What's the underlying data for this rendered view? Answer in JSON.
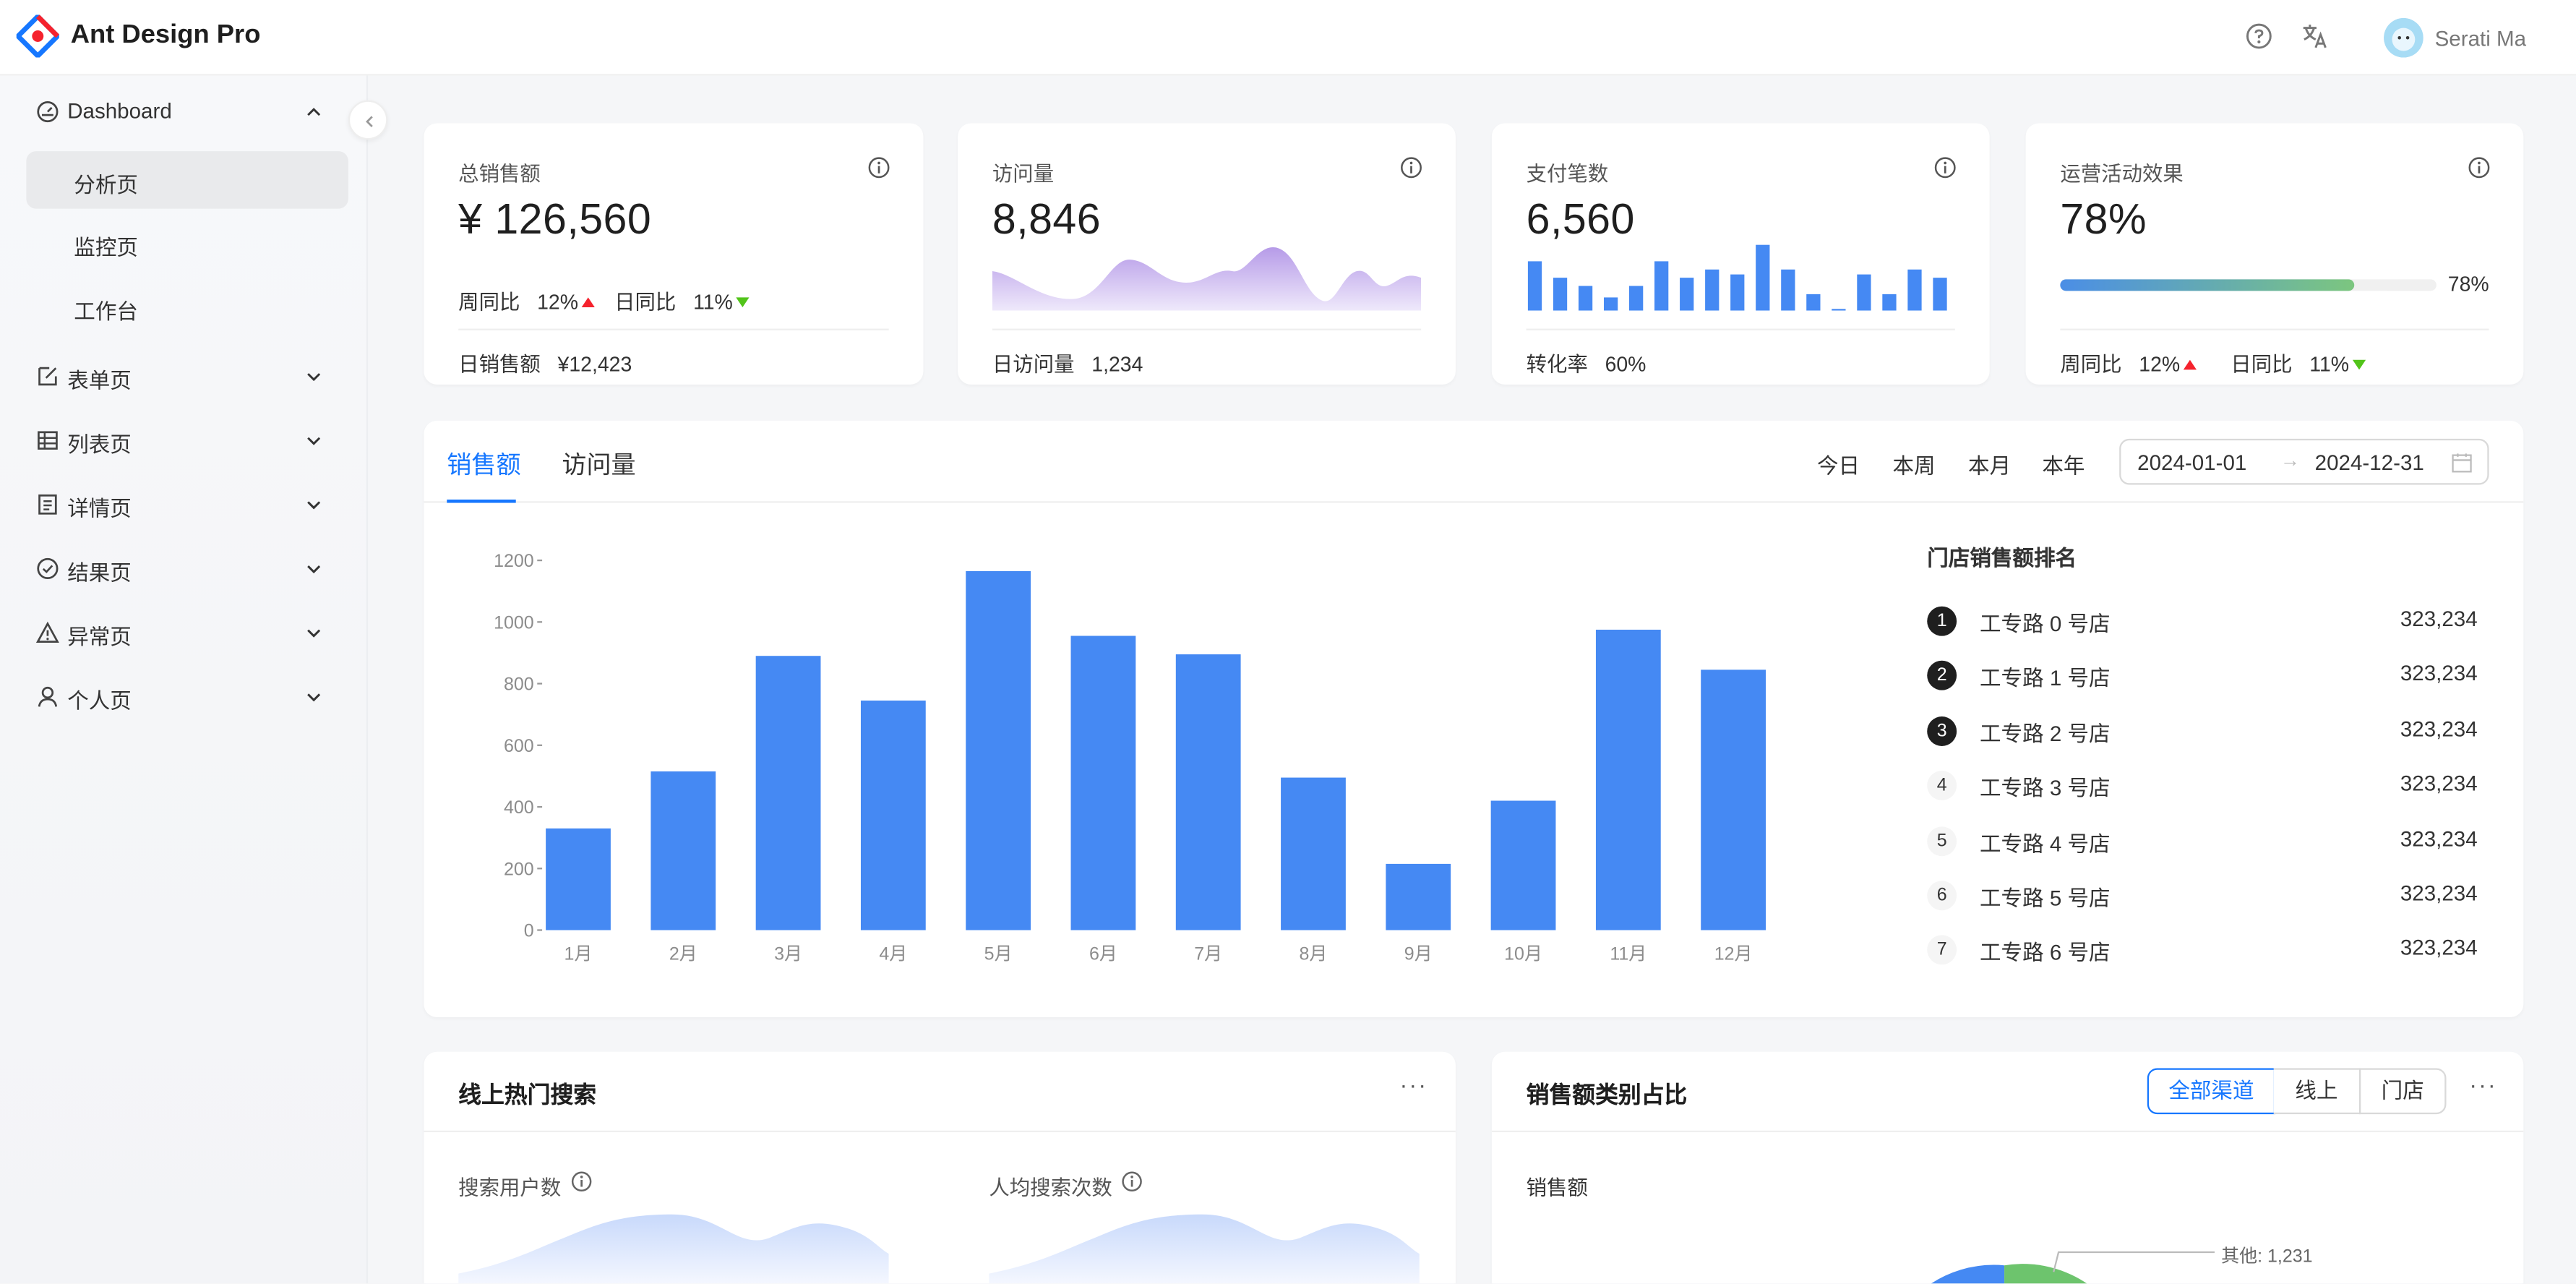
{
  "header": {
    "app_title": "Ant Design Pro",
    "user_name": "Serati Ma"
  },
  "sidebar": {
    "dashboard": {
      "label": "Dashboard",
      "children": [
        "分析页",
        "监控页",
        "工作台"
      ],
      "active_child": "分析页"
    },
    "items": [
      "表单页",
      "列表页",
      "详情页",
      "结果页",
      "异常页",
      "个人页"
    ]
  },
  "stats": [
    {
      "title": "总销售额",
      "value": "¥ 126,560",
      "trend_week_label": "周同比",
      "trend_week": "12%",
      "trend_day_label": "日同比",
      "trend_day": "11%",
      "footer_label": "日销售额",
      "footer_value": "¥12,423"
    },
    {
      "title": "访问量",
      "value": "8,846",
      "footer_label": "日访问量",
      "footer_value": "1,234"
    },
    {
      "title": "支付笔数",
      "value": "6,560",
      "footer_label": "转化率",
      "footer_value": "60%",
      "bar_values": [
        30,
        20,
        15,
        8,
        15,
        30,
        20,
        25,
        22,
        40,
        25,
        10,
        0,
        22,
        10,
        25,
        20
      ]
    },
    {
      "title": "运营活动效果",
      "value": "78%",
      "progress": 0.78,
      "progress_label": "78%",
      "trend_week_label": "周同比",
      "trend_week": "12%",
      "trend_day_label": "日同比",
      "trend_day": "11%"
    }
  ],
  "sales": {
    "tabs": [
      "销售额",
      "访问量"
    ],
    "active_tab": "销售额",
    "ranges": [
      "今日",
      "本周",
      "本月",
      "本年"
    ],
    "date_start": "2024-01-01",
    "date_end": "2024-12-31",
    "rank_title": "门店销售额排名",
    "ranking": [
      {
        "rank": "1",
        "name": "工专路 0 号店",
        "value": "323,234"
      },
      {
        "rank": "2",
        "name": "工专路 1 号店",
        "value": "323,234"
      },
      {
        "rank": "3",
        "name": "工专路 2 号店",
        "value": "323,234"
      },
      {
        "rank": "4",
        "name": "工专路 3 号店",
        "value": "323,234"
      },
      {
        "rank": "5",
        "name": "工专路 4 号店",
        "value": "323,234"
      },
      {
        "rank": "6",
        "name": "工专路 5 号店",
        "value": "323,234"
      },
      {
        "rank": "7",
        "name": "工专路 6 号店",
        "value": "323,234"
      }
    ]
  },
  "chart_data": {
    "type": "bar",
    "categories": [
      "1月",
      "2月",
      "3月",
      "4月",
      "5月",
      "6月",
      "7月",
      "8月",
      "9月",
      "10月",
      "11月",
      "12月"
    ],
    "values": [
      330,
      515,
      890,
      745,
      1165,
      955,
      895,
      495,
      215,
      420,
      975,
      845
    ],
    "ylim": [
      0,
      1200
    ],
    "yticks": [
      0,
      200,
      400,
      600,
      800,
      1000,
      1200
    ],
    "color": "#4589f3",
    "grid": false
  },
  "hot_search": {
    "title": "线上热门搜索",
    "metric_users": "搜索用户数",
    "metric_avg": "人均搜索次数"
  },
  "category": {
    "title": "销售额类别占比",
    "segments": [
      "全部渠道",
      "线上",
      "门店"
    ],
    "active_segment": "全部渠道",
    "subtitle": "销售额",
    "pie_label": "其他: 1,231"
  },
  "colors": {
    "primary": "#1677ff",
    "bar": "#4589f3",
    "up": "#f5222d",
    "down": "#52c41a"
  }
}
